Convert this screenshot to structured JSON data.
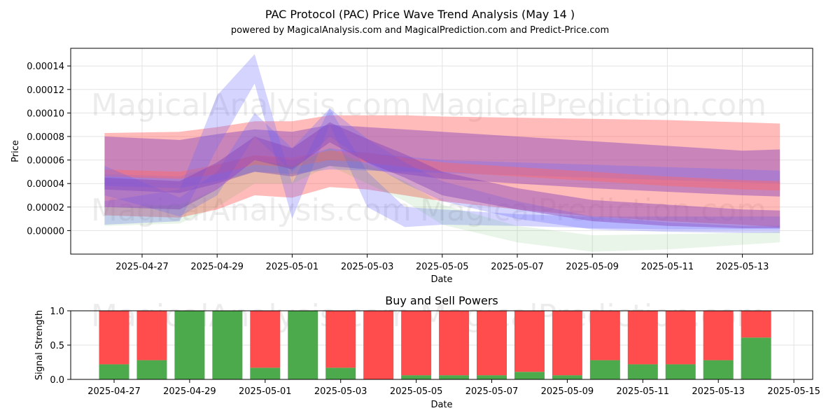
{
  "title": "PAC Protocol (PAC) Price Wave Trend Analysis (May 14 )",
  "subtitle": "powered by MagicalAnalysis.com and MagicalPrediction.com and Predict-Price.com",
  "watermarks": [
    "MagicalAnalysis.com",
    "MagicalPrediction.com"
  ],
  "chart_data": [
    {
      "type": "area",
      "xlabel": "Date",
      "ylabel": "Price",
      "x_tick_labels": [
        "2025-04-27",
        "2025-04-29",
        "2025-05-01",
        "2025-05-03",
        "2025-05-05",
        "2025-05-07",
        "2025-05-09",
        "2025-05-11",
        "2025-05-13"
      ],
      "y_tick_labels": [
        "0.00000",
        "0.00002",
        "0.00004",
        "0.00006",
        "0.00008",
        "0.00010",
        "0.00012",
        "0.00014"
      ],
      "ylim": [
        -2e-05,
        0.000155
      ],
      "grid": true,
      "colors": {
        "red": "#ff6666",
        "blue": "#6666ff",
        "purple": "#8844bb",
        "green": "#44aa44"
      },
      "x": [
        "2025-04-26",
        "2025-04-28",
        "2025-04-29",
        "2025-04-30",
        "2025-05-01",
        "2025-05-02",
        "2025-05-03",
        "2025-05-04",
        "2025-05-05",
        "2025-05-07",
        "2025-05-09",
        "2025-05-11",
        "2025-05-13",
        "2025-05-14"
      ],
      "series": [
        {
          "color": "red",
          "lower": [
            1.3e-05,
            1.1e-05,
            1.8e-05,
            3e-05,
            2.8e-05,
            3.7e-05,
            3.5e-05,
            3e-05,
            2.5e-05,
            1.8e-05,
            1.2e-05,
            8e-06,
            5e-06,
            3e-06
          ],
          "upper": [
            8.3e-05,
            8.4e-05,
            8.8e-05,
            9.3e-05,
            9.3e-05,
            9.8e-05,
            9.8e-05,
            9.8e-05,
            9.7e-05,
            9.6e-05,
            9.5e-05,
            9.4e-05,
            9.2e-05,
            9.1e-05
          ]
        },
        {
          "color": "purple",
          "lower": [
            3.5e-05,
            3.2e-05,
            4e-05,
            5e-05,
            4.6e-05,
            5.5e-05,
            5.2e-05,
            4.8e-05,
            4.4e-05,
            4e-05,
            3.6e-05,
            3.3e-05,
            3e-05,
            2.9e-05
          ],
          "upper": [
            8e-05,
            7.7e-05,
            8.2e-05,
            8.6e-05,
            8.4e-05,
            9e-05,
            8.8e-05,
            8.6e-05,
            8.4e-05,
            8e-05,
            7.6e-05,
            7.2e-05,
            6.8e-05,
            6.9e-05
          ]
        },
        {
          "color": "blue",
          "lower": [
            3.8e-05,
            3.6e-05,
            4.2e-05,
            5e-05,
            4.8e-05,
            5.2e-05,
            5.1e-05,
            5e-05,
            4.9e-05,
            4.7e-05,
            4.5e-05,
            4.3e-05,
            4.1e-05,
            4e-05
          ],
          "upper": [
            4.8e-05,
            4.6e-05,
            5.6e-05,
            6.4e-05,
            6e-05,
            7e-05,
            6.6e-05,
            6.3e-05,
            6e-05,
            5.8e-05,
            5.6e-05,
            5.4e-05,
            5.2e-05,
            5.1e-05
          ]
        },
        {
          "color": "red",
          "lower": [
            4.6e-05,
            4.4e-05,
            4.8e-05,
            5.6e-05,
            5.4e-05,
            6e-05,
            5.8e-05,
            5.4e-05,
            5e-05,
            4.6e-05,
            4.2e-05,
            3.8e-05,
            3.5e-05,
            3.4e-05
          ],
          "upper": [
            5.2e-05,
            5e-05,
            5.6e-05,
            6.4e-05,
            6.2e-05,
            6.8e-05,
            6.6e-05,
            6.2e-05,
            5.8e-05,
            5.4e-05,
            5e-05,
            4.6e-05,
            4.3e-05,
            4.2e-05
          ]
        },
        {
          "color": "blue",
          "lower": [
            3e-05,
            1.2e-05,
            3e-05,
            8e-05,
            5e-05,
            8e-05,
            5.8e-05,
            4e-05,
            2.5e-05,
            1e-05,
            1e-06,
            -1e-06,
            -2e-06,
            -2e-06
          ],
          "upper": [
            5.5e-05,
            2.8e-05,
            5e-05,
            0.0001,
            7e-05,
            0.000104,
            7.8e-05,
            5.8e-05,
            4.2e-05,
            2.5e-05,
            1.2e-05,
            7e-06,
            4e-06,
            4e-06
          ]
        },
        {
          "color": "blue",
          "lower": [
            5e-06,
            8e-06,
            7e-05,
            0.000125,
            1e-05,
            9e-05,
            2e-05,
            3e-06,
            5e-06,
            4e-06,
            2e-06,
            1e-06,
            1e-06,
            1e-06
          ],
          "upper": [
            2.5e-05,
            3.5e-05,
            0.000115,
            0.00015,
            4e-05,
            0.000104,
            5e-05,
            2e-05,
            1.8e-05,
            1.4e-05,
            1.2e-05,
            1.2e-05,
            1.2e-05,
            1.2e-05
          ]
        },
        {
          "color": "green",
          "lower": [
            4e-06,
            6e-06,
            2e-05,
            4e-05,
            4e-05,
            5.5e-05,
            4e-05,
            2.5e-05,
            5e-06,
            -1e-05,
            -1.8e-05,
            -1.6e-05,
            -1.2e-05,
            -1e-05
          ],
          "upper": [
            2e-05,
            2.2e-05,
            3.5e-05,
            6e-05,
            5.5e-05,
            7e-05,
            5.6e-05,
            4.2e-05,
            2.2e-05,
            4e-06,
            -4e-06,
            -3e-06,
            -2e-06,
            -1e-06
          ]
        },
        {
          "color": "purple",
          "lower": [
            2e-05,
            1.8e-05,
            3.5e-05,
            6e-05,
            5.2e-05,
            7.5e-05,
            5.8e-05,
            4.5e-05,
            3e-05,
            1.8e-05,
            8e-06,
            4e-06,
            2e-06,
            2e-06
          ],
          "upper": [
            4.5e-05,
            4.2e-05,
            5.8e-05,
            8e-05,
            7e-05,
            9.2e-05,
            7.8e-05,
            6.5e-05,
            5e-05,
            3.6e-05,
            2.6e-05,
            2.2e-05,
            1.8e-05,
            1.7e-05
          ]
        }
      ]
    },
    {
      "type": "bar",
      "title": "Buy and Sell Powers",
      "xlabel": "Date",
      "ylabel": "Signal Strength",
      "ylim": [
        0,
        1.0
      ],
      "y_tick_labels": [
        "0.0",
        "0.5",
        "1.0"
      ],
      "x_tick_labels": [
        "2025-04-27",
        "2025-04-29",
        "2025-05-01",
        "2025-05-03",
        "2025-05-05",
        "2025-05-07",
        "2025-05-09",
        "2025-05-11",
        "2025-05-13",
        "2025-05-15"
      ],
      "grid": true,
      "colors": {
        "buy": "#4caa4c",
        "sell": "#ff4c4c"
      },
      "categories": [
        "2025-04-27",
        "2025-04-28",
        "2025-04-29",
        "2025-04-30",
        "2025-05-01",
        "2025-05-02",
        "2025-05-03",
        "2025-05-04",
        "2025-05-05",
        "2025-05-06",
        "2025-05-07",
        "2025-05-08",
        "2025-05-09",
        "2025-05-10",
        "2025-05-11",
        "2025-05-12",
        "2025-05-13",
        "2025-05-14"
      ],
      "buy": [
        0.22,
        0.28,
        1.0,
        1.0,
        0.17,
        1.0,
        0.17,
        0.0,
        0.06,
        0.06,
        0.06,
        0.11,
        0.06,
        0.28,
        0.22,
        0.22,
        0.28,
        0.61
      ],
      "sell": [
        0.78,
        0.72,
        0.0,
        0.0,
        0.83,
        0.0,
        0.83,
        1.0,
        0.94,
        0.94,
        0.94,
        0.89,
        0.94,
        0.72,
        0.78,
        0.78,
        0.72,
        0.39
      ]
    }
  ]
}
